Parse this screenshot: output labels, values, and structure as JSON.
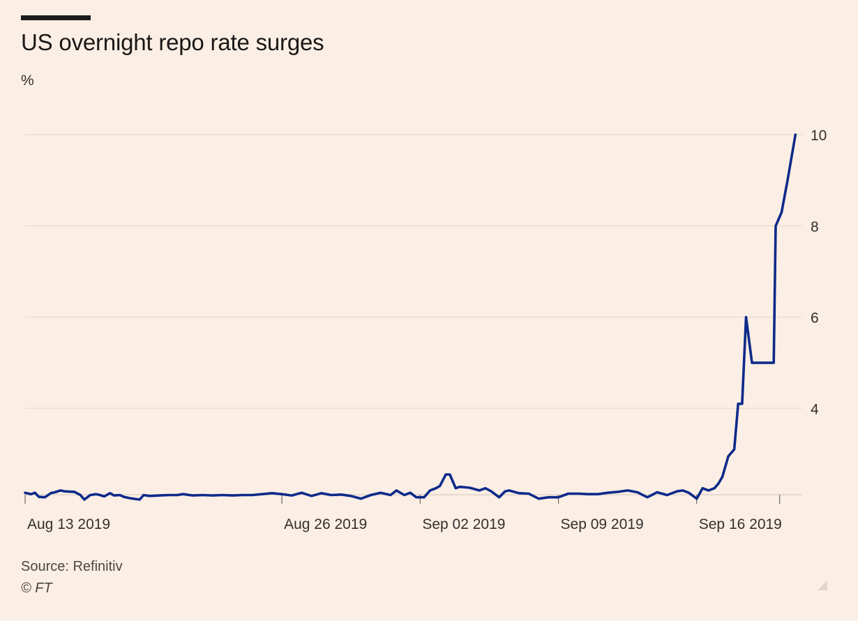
{
  "header": {
    "title": "US overnight repo rate surges",
    "unit": "%"
  },
  "footer": {
    "source": "Source: Refinitiv",
    "copyright": "© FT"
  },
  "colors": {
    "background": "#fbeee4",
    "line": "#0d2a8a",
    "grid": "#e8dcd2",
    "text": "#33302e"
  },
  "chart_data": {
    "type": "line",
    "title": "US overnight repo rate surges",
    "ylabel": "%",
    "xlabel": "",
    "ylim": [
      2,
      10
    ],
    "xlim": [
      0,
      39.2
    ],
    "yticks": [
      4,
      6,
      8,
      10
    ],
    "ytick_labels": [
      "4",
      "6",
      "8",
      "10"
    ],
    "xticks": [
      {
        "label": "Aug 13 2019",
        "x": 0
      },
      {
        "label": "Aug 26 2019",
        "x": 13
      },
      {
        "label": "Sep 02 2019",
        "x": 20
      },
      {
        "label": "Sep 09 2019",
        "x": 27
      },
      {
        "label": "Sep 16 2019",
        "x": 34
      }
    ],
    "grid": true,
    "legend": "none",
    "series": [
      {
        "name": "US overnight repo rate",
        "color": "#0d2a8a",
        "x": [
          0,
          0.3,
          0.5,
          0.7,
          1.0,
          1.3,
          1.5,
          1.8,
          2.0,
          2.5,
          2.8,
          3.0,
          3.3,
          3.6,
          3.8,
          4.0,
          4.3,
          4.5,
          4.8,
          5.0,
          5.3,
          5.8,
          6.0,
          6.3,
          6.8,
          7.3,
          7.7,
          8.0,
          8.5,
          9.0,
          9.5,
          10.0,
          10.5,
          11.0,
          11.5,
          12.0,
          12.5,
          13.0,
          13.5,
          14.0,
          14.5,
          15.0,
          15.5,
          16.0,
          16.5,
          17.0,
          17.5,
          18.0,
          18.5,
          18.8,
          19.2,
          19.5,
          19.8,
          20.2,
          20.5,
          20.8,
          21.0,
          21.3,
          21.5,
          21.8,
          22.0,
          22.5,
          23.0,
          23.3,
          23.6,
          24.0,
          24.3,
          24.5,
          25.0,
          25.5,
          26.0,
          26.5,
          27.0,
          27.5,
          28.0,
          28.5,
          29.0,
          29.5,
          30.0,
          30.5,
          31.0,
          31.5,
          32.0,
          32.5,
          33.0,
          33.3,
          33.6,
          34.0,
          34.3,
          34.6,
          34.9,
          35.1,
          35.3,
          35.6,
          35.9,
          36.1,
          36.3,
          36.5,
          36.8,
          37.0,
          37.3,
          37.6,
          37.9,
          38.0,
          38.3,
          38.6,
          39.0
        ],
        "values": [
          2.15,
          2.12,
          2.15,
          2.06,
          2.05,
          2.14,
          2.16,
          2.2,
          2.18,
          2.17,
          2.1,
          2.0,
          2.1,
          2.12,
          2.1,
          2.07,
          2.14,
          2.09,
          2.1,
          2.06,
          2.03,
          2.0,
          2.1,
          2.08,
          2.09,
          2.1,
          2.1,
          2.12,
          2.09,
          2.1,
          2.09,
          2.1,
          2.09,
          2.1,
          2.1,
          2.12,
          2.14,
          2.12,
          2.09,
          2.15,
          2.08,
          2.14,
          2.1,
          2.11,
          2.08,
          2.02,
          2.1,
          2.15,
          2.1,
          2.2,
          2.1,
          2.15,
          2.05,
          2.05,
          2.2,
          2.25,
          2.3,
          2.55,
          2.55,
          2.25,
          2.28,
          2.26,
          2.2,
          2.25,
          2.18,
          2.05,
          2.18,
          2.2,
          2.14,
          2.13,
          2.02,
          2.05,
          2.05,
          2.13,
          2.13,
          2.12,
          2.12,
          2.15,
          2.17,
          2.2,
          2.16,
          2.05,
          2.16,
          2.1,
          2.18,
          2.2,
          2.15,
          2.02,
          2.25,
          2.2,
          2.25,
          2.35,
          2.5,
          2.95,
          3.1,
          4.1,
          4.1,
          6.0,
          5.0,
          5.0,
          5.0,
          5.0,
          5.0,
          8.0,
          8.3,
          9.0,
          10.0
        ]
      }
    ]
  }
}
